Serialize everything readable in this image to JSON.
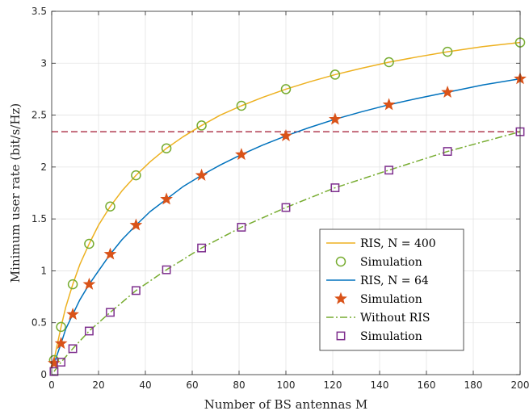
{
  "chart_data": {
    "type": "line",
    "title": "",
    "xlabel": "Number of BS antennas M",
    "ylabel": "Minimum user rate (bit/s/Hz)",
    "xlim": [
      0,
      200
    ],
    "ylim": [
      0,
      3.5
    ],
    "xticks": [
      0,
      20,
      40,
      60,
      80,
      100,
      120,
      140,
      160,
      180,
      200
    ],
    "yticks": [
      0,
      0.5,
      1,
      1.5,
      2,
      2.5,
      3,
      3.5
    ],
    "xtick_labels": [
      "0",
      "20",
      "40",
      "60",
      "80",
      "100",
      "120",
      "140",
      "160",
      "180",
      "200"
    ],
    "ytick_labels": [
      "0",
      "0.5",
      "1",
      "1.5",
      "2",
      "2.5",
      "3",
      "3.5"
    ],
    "grid": true,
    "legend_position": "lower-right",
    "reference_line": {
      "y": 2.34,
      "style": "dashed",
      "color": "#a2142f"
    },
    "sim_x": [
      1,
      4,
      9,
      16,
      25,
      36,
      49,
      64,
      81,
      100,
      121,
      144,
      169,
      200
    ],
    "series": [
      {
        "name": "RIS, N = 400",
        "kind": "line",
        "color": "#edb120",
        "dash": "solid",
        "x": [
          1,
          2,
          4,
          6,
          9,
          12,
          16,
          20,
          25,
          30,
          36,
          42,
          49,
          56,
          64,
          72,
          81,
          90,
          100,
          110,
          121,
          132,
          144,
          156,
          169,
          184,
          200
        ],
        "y": [
          0.14,
          0.25,
          0.46,
          0.65,
          0.87,
          1.06,
          1.26,
          1.44,
          1.62,
          1.77,
          1.92,
          2.05,
          2.18,
          2.29,
          2.4,
          2.5,
          2.59,
          2.67,
          2.75,
          2.82,
          2.89,
          2.95,
          3.01,
          3.06,
          3.11,
          3.16,
          3.2
        ]
      },
      {
        "name": "Simulation",
        "kind": "marker",
        "marker": "circle",
        "color": "#77ac30",
        "y": [
          0.14,
          0.46,
          0.87,
          1.26,
          1.62,
          1.92,
          2.18,
          2.4,
          2.59,
          2.75,
          2.89,
          3.01,
          3.11,
          3.2
        ]
      },
      {
        "name": "RIS, N = 64",
        "kind": "line",
        "color": "#0072bd",
        "dash": "solid",
        "x": [
          1,
          2,
          4,
          6,
          9,
          12,
          16,
          20,
          25,
          30,
          36,
          42,
          49,
          56,
          64,
          72,
          81,
          90,
          100,
          110,
          121,
          132,
          144,
          156,
          169,
          184,
          200
        ],
        "y": [
          0.11,
          0.17,
          0.3,
          0.44,
          0.58,
          0.72,
          0.87,
          1.0,
          1.16,
          1.3,
          1.44,
          1.57,
          1.69,
          1.81,
          1.92,
          2.02,
          2.12,
          2.21,
          2.3,
          2.38,
          2.46,
          2.53,
          2.6,
          2.66,
          2.72,
          2.79,
          2.85
        ]
      },
      {
        "name": "Simulation",
        "kind": "marker",
        "marker": "star",
        "color": "#d95319",
        "y": [
          0.11,
          0.3,
          0.58,
          0.87,
          1.16,
          1.44,
          1.69,
          1.92,
          2.12,
          2.3,
          2.46,
          2.6,
          2.72,
          2.85
        ]
      },
      {
        "name": "Without RIS",
        "kind": "line",
        "color": "#77ac30",
        "dash": "dashdot",
        "x": [
          1,
          4,
          9,
          16,
          25,
          36,
          49,
          64,
          81,
          100,
          121,
          144,
          169,
          200
        ],
        "y": [
          0.03,
          0.12,
          0.25,
          0.42,
          0.6,
          0.81,
          1.01,
          1.22,
          1.42,
          1.61,
          1.8,
          1.97,
          2.15,
          2.34
        ]
      },
      {
        "name": "Simulation",
        "kind": "marker",
        "marker": "square",
        "color": "#7e2f8e",
        "y": [
          0.03,
          0.12,
          0.25,
          0.42,
          0.6,
          0.81,
          1.01,
          1.22,
          1.42,
          1.61,
          1.8,
          1.97,
          2.15,
          2.34
        ]
      }
    ]
  }
}
